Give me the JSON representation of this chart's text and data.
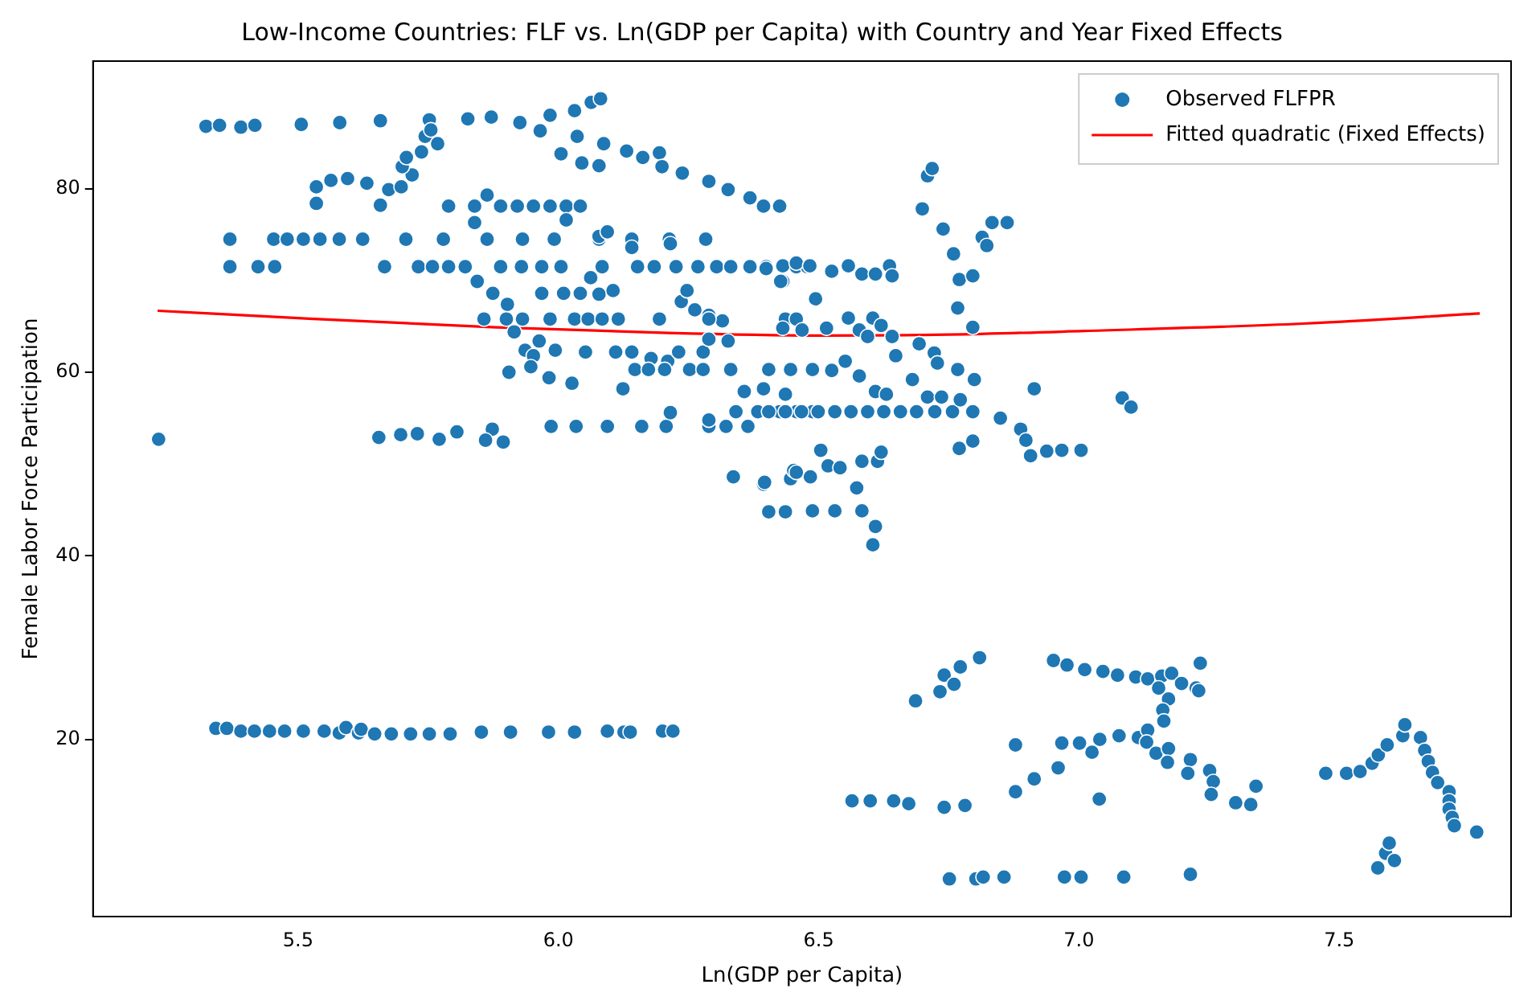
{
  "chart_data": {
    "type": "scatter",
    "title": "Low-Income Countries: FLF vs. Ln(GDP per Capita) with Country and Year Fixed Effects",
    "xlabel": "Ln(GDP per Capita)",
    "ylabel": "Female Labor Force Participation",
    "xlim": [
      5.106,
      7.83
    ],
    "ylim": [
      0.7,
      93.9
    ],
    "xticks": [
      5.5,
      {
        "value": 6,
        "label": "6.0"
      },
      6.5,
      {
        "value": 7,
        "label": "7.0"
      },
      7.5
    ],
    "yticks": [
      20,
      40,
      60,
      80
    ],
    "grid": false,
    "legend": "top right",
    "marker": "circle",
    "series": [
      {
        "name": "Observed FLFPR",
        "type": "scatter",
        "color": "#1f77b4",
        "x": [
          5.323,
          5.349,
          5.39,
          5.417,
          5.506,
          5.58,
          5.658,
          5.752,
          5.826,
          5.871,
          5.926,
          5.965,
          5.984,
          6.031,
          6.063,
          6.081,
          5.535,
          5.563,
          5.595,
          5.632,
          5.658,
          5.674,
          5.698,
          5.719,
          5.7,
          5.708,
          5.737,
          5.744,
          5.768,
          5.755,
          5.535,
          6.005,
          6.036,
          6.087,
          6.078,
          6.131,
          6.162,
          6.194,
          6.199,
          6.238,
          6.289,
          6.326,
          6.368,
          6.394,
          6.425,
          6.045,
          5.789,
          5.839,
          5.889,
          5.921,
          5.952,
          5.984,
          6.015,
          6.042,
          5.863,
          5.839,
          6.015,
          5.369,
          5.453,
          5.479,
          5.51,
          5.542,
          5.579,
          5.624,
          5.707,
          5.779,
          5.863,
          5.931,
          5.992,
          6.078,
          6.141,
          6.213,
          6.283,
          5.369,
          5.423,
          5.455,
          5.666,
          5.731,
          5.758,
          5.789,
          5.821,
          5.889,
          5.929,
          5.968,
          6.005,
          6.084,
          6.152,
          6.184,
          6.226,
          6.268,
          6.304,
          6.331,
          6.368,
          6.399,
          6.457,
          6.478,
          5.844,
          5.874,
          5.902,
          5.968,
          6.01,
          6.042,
          6.078,
          6.105,
          6.078,
          6.094,
          6.141,
          6.215,
          6.236,
          6.247,
          6.262,
          6.289,
          6.315,
          6.062,
          6.431,
          5.857,
          5.9,
          5.931,
          5.984,
          6.031,
          6.057,
          6.084,
          6.115,
          6.194,
          6.289,
          6.436,
          6.457,
          5.915,
          5.963,
          5.936,
          5.952,
          5.994,
          6.052,
          6.11,
          6.141,
          6.178,
          6.21,
          6.231,
          6.278,
          6.289,
          6.326,
          6.147,
          6.173,
          6.204,
          6.252,
          6.278,
          6.331,
          6.404,
          6.446,
          6.488,
          5.905,
          5.947,
          5.982,
          6.026,
          6.124,
          5.986,
          6.034,
          6.094,
          6.16,
          6.207,
          6.289,
          6.322,
          6.364,
          6.215,
          6.289,
          5.655,
          5.697,
          5.729,
          5.771,
          5.805,
          5.873,
          5.86,
          5.894,
          5.232,
          6.336,
          6.394,
          6.446,
          6.452,
          6.404,
          6.436,
          6.488,
          6.341,
          6.383,
          6.425,
          6.457,
          6.488,
          6.357,
          6.394,
          6.436,
          6.399,
          6.431,
          6.457,
          6.483,
          6.525,
          6.557,
          6.583,
          6.609,
          6.636,
          6.641,
          6.427,
          6.494,
          6.699,
          6.709,
          6.718,
          6.739,
          6.759,
          6.77,
          6.796,
          6.767,
          6.796,
          6.814,
          6.823,
          6.833,
          6.862,
          6.431,
          6.468,
          6.515,
          6.557,
          6.578,
          6.604,
          6.62,
          6.641,
          6.594,
          6.648,
          6.693,
          6.722,
          6.728,
          6.767,
          6.799,
          6.68,
          6.551,
          6.578,
          6.525,
          6.914,
          7.083,
          7.1,
          6.404,
          6.436,
          6.467,
          6.499,
          6.531,
          6.562,
          6.594,
          6.625,
          6.657,
          6.688,
          6.723,
          6.757,
          6.796,
          6.609,
          6.63,
          6.709,
          6.736,
          6.772,
          6.849,
          6.888,
          6.898,
          6.907,
          6.938,
          6.967,
          7.004,
          6.77,
          6.796,
          6.504,
          6.518,
          6.541,
          6.573,
          6.583,
          6.613,
          6.62,
          6.396,
          6.484,
          6.457,
          6.531,
          6.583,
          6.609,
          6.604,
          6.686,
          6.733,
          6.741,
          6.76,
          6.772,
          6.809,
          6.951,
          6.977,
          7.011,
          7.046,
          7.074,
          7.109,
          7.132,
          7.159,
          7.178,
          7.197,
          7.153,
          7.225,
          7.23,
          7.233,
          7.172,
          7.161,
          7.163,
          6.878,
          6.967,
          7.001,
          7.025,
          7.04,
          7.077,
          7.114,
          7.132,
          7.13,
          7.148,
          7.172,
          7.17,
          7.214,
          7.209,
          7.251,
          7.258,
          7.254,
          7.301,
          7.33,
          7.34,
          6.878,
          6.914,
          6.96,
          7.039,
          6.564,
          6.599,
          6.644,
          6.673,
          6.741,
          6.781,
          6.751,
          6.802,
          6.816,
          6.856,
          6.972,
          7.004,
          7.086,
          7.214,
          7.474,
          7.514,
          7.54,
          7.563,
          7.575,
          7.592,
          7.622,
          7.626,
          7.656,
          7.664,
          7.671,
          7.679,
          7.689,
          7.711,
          7.711,
          7.711,
          7.717,
          7.721,
          7.764,
          7.574,
          7.589,
          7.596,
          7.606,
          5.342,
          5.363,
          5.39,
          5.416,
          5.445,
          5.474,
          5.51,
          5.55,
          5.579,
          5.592,
          5.616,
          5.621,
          5.647,
          5.679,
          5.716,
          5.752,
          5.792,
          5.852,
          5.908,
          5.981,
          6.031,
          6.094,
          6.126,
          6.138,
          6.2,
          6.22
        ],
        "values": [
          86.8,
          86.9,
          86.7,
          86.9,
          87.0,
          87.2,
          87.4,
          87.5,
          87.6,
          87.8,
          87.2,
          86.3,
          88.0,
          88.5,
          89.4,
          89.8,
          80.2,
          80.9,
          81.1,
          80.6,
          78.2,
          79.9,
          80.2,
          81.5,
          82.4,
          83.4,
          84.0,
          85.7,
          84.9,
          86.4,
          78.4,
          83.8,
          85.7,
          84.9,
          82.5,
          84.1,
          83.4,
          83.9,
          82.4,
          81.7,
          80.8,
          79.9,
          79.0,
          78.1,
          78.1,
          82.8,
          78.1,
          78.1,
          78.1,
          78.1,
          78.1,
          78.1,
          78.1,
          78.1,
          79.3,
          76.3,
          76.6,
          74.5,
          74.5,
          74.5,
          74.5,
          74.5,
          74.5,
          74.5,
          74.5,
          74.5,
          74.5,
          74.5,
          74.5,
          74.5,
          74.5,
          74.5,
          74.5,
          71.5,
          71.5,
          71.5,
          71.5,
          71.5,
          71.5,
          71.5,
          71.5,
          71.5,
          71.5,
          71.5,
          71.5,
          71.5,
          71.5,
          71.5,
          71.5,
          71.5,
          71.5,
          71.5,
          71.5,
          71.5,
          71.5,
          71.5,
          69.9,
          68.6,
          67.4,
          68.6,
          68.6,
          68.6,
          68.5,
          68.9,
          74.8,
          75.3,
          73.6,
          74.0,
          67.7,
          68.9,
          66.8,
          66.2,
          65.6,
          70.3,
          69.9,
          65.8,
          65.8,
          65.8,
          65.8,
          65.8,
          65.8,
          65.8,
          65.8,
          65.8,
          65.8,
          65.8,
          65.8,
          64.4,
          63.4,
          62.4,
          61.8,
          62.4,
          62.2,
          62.2,
          62.2,
          61.5,
          61.2,
          62.2,
          62.2,
          63.6,
          63.4,
          60.3,
          60.3,
          60.3,
          60.3,
          60.3,
          60.3,
          60.3,
          60.3,
          60.3,
          60.0,
          60.6,
          59.4,
          58.8,
          58.2,
          54.1,
          54.1,
          54.1,
          54.1,
          54.1,
          54.1,
          54.1,
          54.1,
          55.6,
          54.8,
          52.9,
          53.2,
          53.3,
          52.7,
          53.5,
          53.8,
          52.6,
          52.4,
          52.7,
          48.6,
          47.8,
          48.4,
          49.3,
          44.8,
          44.8,
          44.9,
          55.7,
          55.7,
          55.7,
          55.7,
          55.7,
          57.9,
          58.2,
          57.6,
          71.3,
          71.6,
          71.9,
          71.6,
          71.0,
          71.6,
          70.7,
          70.7,
          71.6,
          70.5,
          69.9,
          68.0,
          77.8,
          81.4,
          82.2,
          75.6,
          72.9,
          70.1,
          70.5,
          67.0,
          64.9,
          74.7,
          73.8,
          76.3,
          76.3,
          64.8,
          64.6,
          64.8,
          65.9,
          64.6,
          65.9,
          65.1,
          63.9,
          63.9,
          61.8,
          63.1,
          62.1,
          61.0,
          60.3,
          59.2,
          59.2,
          61.2,
          59.6,
          60.2,
          58.2,
          57.2,
          56.2,
          55.7,
          55.7,
          55.7,
          55.7,
          55.7,
          55.7,
          55.7,
          55.7,
          55.7,
          55.7,
          55.7,
          55.7,
          55.7,
          57.9,
          57.6,
          57.3,
          57.3,
          57.0,
          55.0,
          53.8,
          52.6,
          50.9,
          51.4,
          51.5,
          51.5,
          51.7,
          52.5,
          51.5,
          49.8,
          49.6,
          47.4,
          50.3,
          50.3,
          51.3,
          48.0,
          48.6,
          49.1,
          44.9,
          44.9,
          43.2,
          41.2,
          24.2,
          25.2,
          27.0,
          26.0,
          27.9,
          28.9,
          28.6,
          28.1,
          27.6,
          27.4,
          27.0,
          26.8,
          26.6,
          26.9,
          27.2,
          26.1,
          25.6,
          25.6,
          25.3,
          28.3,
          24.4,
          23.2,
          22.0,
          19.4,
          19.6,
          19.6,
          18.6,
          20.0,
          20.4,
          20.2,
          21.0,
          19.7,
          18.5,
          19.0,
          17.5,
          17.8,
          16.3,
          16.6,
          15.4,
          14.0,
          13.1,
          12.9,
          14.9,
          14.3,
          15.7,
          16.9,
          13.5,
          13.3,
          13.3,
          13.3,
          13.0,
          12.6,
          12.8,
          4.8,
          4.8,
          5.0,
          5.0,
          5.0,
          5.0,
          5.0,
          5.3,
          16.3,
          16.3,
          16.5,
          17.4,
          18.3,
          19.4,
          20.4,
          21.6,
          20.2,
          18.8,
          17.6,
          16.4,
          15.3,
          14.3,
          13.3,
          12.4,
          11.5,
          10.6,
          9.9,
          6.0,
          7.6,
          8.7,
          6.8,
          21.2,
          21.2,
          20.9,
          20.9,
          20.9,
          20.9,
          20.9,
          20.9,
          20.7,
          21.3,
          20.7,
          21.1,
          20.6,
          20.6,
          20.6,
          20.6,
          20.6,
          20.8,
          20.8,
          20.8,
          20.8,
          20.9,
          20.8,
          20.8,
          20.9,
          20.9
        ]
      },
      {
        "name": "Fitted quadratic (Fixed Effects)",
        "type": "line",
        "color": "#ff0000",
        "marker": "none",
        "line_style": "solid",
        "x": [
          5.23,
          5.5,
          5.88,
          6.2,
          6.51,
          6.75,
          7.01,
          7.43,
          7.77
        ],
        "values": [
          66.7,
          65.9,
          64.9,
          64.3,
          64.0,
          64.1,
          64.5,
          65.3,
          66.4
        ]
      }
    ]
  }
}
